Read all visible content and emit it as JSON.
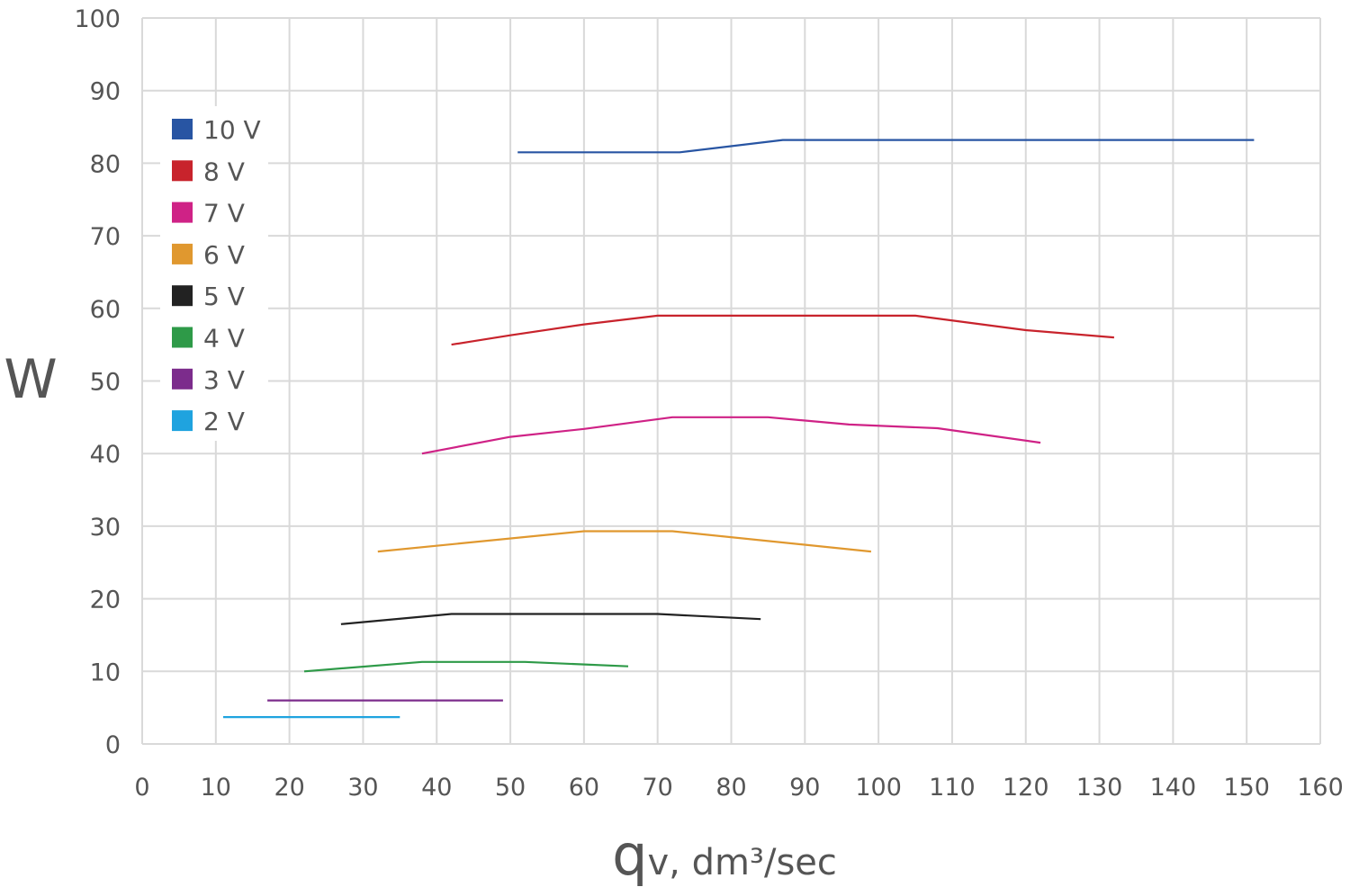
{
  "chart_data": {
    "type": "line",
    "xlabel_prefix": "q",
    "xlabel_rest": "v, dm³/sec",
    "ylabel": "W",
    "xlim": [
      0,
      160
    ],
    "ylim": [
      0,
      100
    ],
    "x_ticks": [
      "0",
      "10",
      "20",
      "30",
      "40",
      "50",
      "60",
      "70",
      "80",
      "90",
      "100",
      "110",
      "120",
      "130",
      "140",
      "150",
      "160"
    ],
    "y_ticks": [
      "0",
      "10",
      "20",
      "30",
      "40",
      "50",
      "60",
      "70",
      "80",
      "90",
      "100"
    ],
    "grid": true,
    "legend_position": "top-left",
    "series": [
      {
        "name": "10 V",
        "color": "#2855a3",
        "points": [
          [
            51,
            81.5
          ],
          [
            73,
            81.5
          ],
          [
            87,
            83.2
          ],
          [
            151,
            83.2
          ]
        ]
      },
      {
        "name": "8 V",
        "color": "#c8232c",
        "points": [
          [
            42,
            55
          ],
          [
            50,
            56.3
          ],
          [
            60,
            57.8
          ],
          [
            70,
            59
          ],
          [
            105,
            59
          ],
          [
            120,
            57
          ],
          [
            132,
            56
          ]
        ]
      },
      {
        "name": "7 V",
        "color": "#cf2286",
        "points": [
          [
            38,
            40
          ],
          [
            50,
            42.3
          ],
          [
            60,
            43.4
          ],
          [
            72,
            45
          ],
          [
            85,
            45
          ],
          [
            96,
            44
          ],
          [
            108,
            43.5
          ],
          [
            122,
            41.5
          ]
        ]
      },
      {
        "name": "6 V",
        "color": "#e0982f",
        "points": [
          [
            32,
            26.5
          ],
          [
            60,
            29.3
          ],
          [
            72,
            29.3
          ],
          [
            99,
            26.5
          ]
        ]
      },
      {
        "name": "5 V",
        "color": "#222222",
        "points": [
          [
            27,
            16.5
          ],
          [
            42,
            17.9
          ],
          [
            70,
            17.9
          ],
          [
            84,
            17.2
          ]
        ]
      },
      {
        "name": "4 V",
        "color": "#2e9a48",
        "points": [
          [
            22,
            10
          ],
          [
            38,
            11.3
          ],
          [
            52,
            11.3
          ],
          [
            66,
            10.7
          ]
        ]
      },
      {
        "name": "3 V",
        "color": "#7c2c8c",
        "points": [
          [
            17,
            6
          ],
          [
            49,
            6
          ]
        ]
      },
      {
        "name": "2 V",
        "color": "#1fa3df",
        "points": [
          [
            11,
            3.7
          ],
          [
            35,
            3.7
          ]
        ]
      }
    ]
  }
}
